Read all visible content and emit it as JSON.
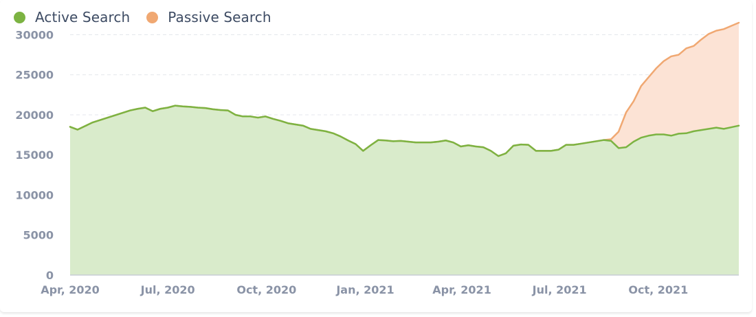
{
  "chart_data": {
    "type": "area",
    "x": [
      "2020-04-01",
      "2020-04-08",
      "2020-04-15",
      "2020-04-22",
      "2020-04-29",
      "2020-05-06",
      "2020-05-13",
      "2020-05-20",
      "2020-05-27",
      "2020-06-03",
      "2020-06-10",
      "2020-06-17",
      "2020-06-24",
      "2020-07-01",
      "2020-07-08",
      "2020-07-15",
      "2020-07-22",
      "2020-07-29",
      "2020-08-05",
      "2020-08-12",
      "2020-08-19",
      "2020-08-26",
      "2020-09-02",
      "2020-09-09",
      "2020-09-16",
      "2020-09-23",
      "2020-09-30",
      "2020-10-07",
      "2020-10-14",
      "2020-10-21",
      "2020-10-28",
      "2020-11-04",
      "2020-11-11",
      "2020-11-18",
      "2020-11-25",
      "2020-12-02",
      "2020-12-09",
      "2020-12-16",
      "2020-12-23",
      "2020-12-30",
      "2021-01-06",
      "2021-01-13",
      "2021-01-20",
      "2021-01-27",
      "2021-02-03",
      "2021-02-10",
      "2021-02-17",
      "2021-02-24",
      "2021-03-03",
      "2021-03-10",
      "2021-03-17",
      "2021-03-24",
      "2021-03-31",
      "2021-04-07",
      "2021-04-14",
      "2021-04-21",
      "2021-04-28",
      "2021-05-05",
      "2021-05-12",
      "2021-05-19",
      "2021-05-26",
      "2021-06-02",
      "2021-06-09",
      "2021-06-16",
      "2021-06-23",
      "2021-06-30",
      "2021-07-07",
      "2021-07-14",
      "2021-07-21",
      "2021-07-28",
      "2021-08-04",
      "2021-08-11",
      "2021-08-18",
      "2021-08-25",
      "2021-09-01",
      "2021-09-08",
      "2021-09-15",
      "2021-09-22",
      "2021-09-29",
      "2021-10-06",
      "2021-10-13",
      "2021-10-20",
      "2021-10-27",
      "2021-11-03",
      "2021-11-10",
      "2021-11-17",
      "2021-11-24",
      "2021-12-01",
      "2021-12-08",
      "2021-12-15"
    ],
    "series": [
      {
        "name": "Active Search",
        "color": "#7cb342",
        "values": [
          18500,
          18150,
          18600,
          19050,
          19350,
          19650,
          19950,
          20250,
          20550,
          20750,
          20900,
          20450,
          20750,
          20900,
          21150,
          21050,
          21000,
          20900,
          20850,
          20700,
          20600,
          20550,
          20000,
          19800,
          19800,
          19650,
          19800,
          19500,
          19250,
          18950,
          18800,
          18650,
          18250,
          18100,
          17950,
          17700,
          17300,
          16800,
          16350,
          15500,
          16200,
          16850,
          16800,
          16700,
          16750,
          16650,
          16550,
          16550,
          16550,
          16650,
          16800,
          16550,
          16050,
          16200,
          16050,
          15950,
          15500,
          14850,
          15200,
          16150,
          16300,
          16250,
          15500,
          15500,
          15500,
          15650,
          16250,
          16250,
          16400,
          16550,
          16700,
          16850,
          16750,
          15850,
          15950,
          16650,
          17150,
          17400,
          17550,
          17550,
          17400,
          17650,
          17700,
          17950,
          18100,
          18250,
          18400,
          18250,
          18450,
          18650
        ]
      },
      {
        "name": "Passive Search",
        "color": "#f0a872",
        "values": [
          18500,
          18150,
          18600,
          19050,
          19350,
          19650,
          19950,
          20250,
          20550,
          20750,
          20900,
          20450,
          20750,
          20900,
          21150,
          21050,
          21000,
          20900,
          20850,
          20700,
          20600,
          20550,
          20000,
          19800,
          19800,
          19650,
          19800,
          19500,
          19250,
          18950,
          18800,
          18650,
          18250,
          18100,
          17950,
          17700,
          17300,
          16800,
          16350,
          15500,
          16200,
          16850,
          16800,
          16700,
          16750,
          16650,
          16550,
          16550,
          16550,
          16650,
          16800,
          16550,
          16050,
          16200,
          16050,
          15950,
          15500,
          14850,
          15200,
          16150,
          16300,
          16250,
          15500,
          15500,
          15500,
          15650,
          16250,
          16250,
          16400,
          16550,
          16700,
          16850,
          16950,
          17900,
          20300,
          21700,
          23600,
          24700,
          25800,
          26700,
          27300,
          27500,
          28300,
          28600,
          29400,
          30100,
          30500,
          30700,
          31100,
          31500
        ]
      }
    ],
    "xticks": [
      {
        "date": "2020-04-01",
        "label": "Apr, 2020"
      },
      {
        "date": "2020-07-01",
        "label": "Jul, 2020"
      },
      {
        "date": "2020-10-01",
        "label": "Oct, 2020"
      },
      {
        "date": "2021-01-01",
        "label": "Jan, 2021"
      },
      {
        "date": "2021-04-01",
        "label": "Apr, 2021"
      },
      {
        "date": "2021-07-01",
        "label": "Jul, 2021"
      },
      {
        "date": "2021-10-01",
        "label": "Oct, 2021"
      }
    ],
    "yticks": [
      0,
      5000,
      10000,
      15000,
      20000,
      25000,
      30000
    ],
    "ylim": [
      0,
      31500
    ],
    "xlim": [
      "2020-04-01",
      "2021-12-15"
    ],
    "grid": true,
    "legend_position": "top-left",
    "title": "",
    "xlabel": "",
    "ylabel": ""
  },
  "colors": {
    "active_fill": "#d9ebcb",
    "passive_fill": "#fce3d5",
    "grid": "#e4e7ec",
    "axis": "#c8cdd6",
    "tick_text": "#8a93a6"
  }
}
